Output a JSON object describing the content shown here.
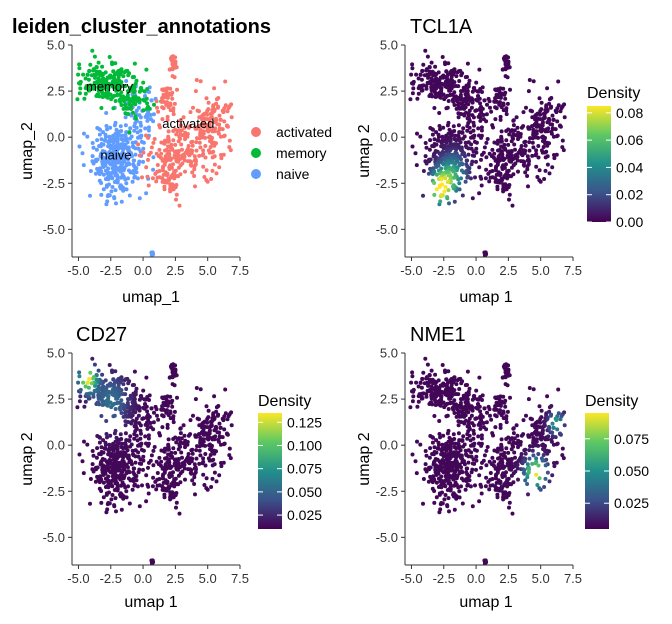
{
  "chart_data": [
    {
      "type": "scatter",
      "title": "leiden_cluster_annotations",
      "xlabel": "umap_1",
      "ylabel": "umap_2",
      "xlim": [
        -5.5,
        7.5
      ],
      "ylim": [
        -6.5,
        5.0
      ],
      "xticks": [
        "-5.0",
        "-2.5",
        "0.0",
        "2.5",
        "5.0",
        "7.5"
      ],
      "yticks": [
        "5.0",
        "2.5",
        "0.0",
        "-2.5",
        "-5.0"
      ],
      "color_mode": "categorical",
      "legend": {
        "placement": "right",
        "entries": [
          {
            "label": "activated",
            "color": "#F8766D"
          },
          {
            "label": "memory",
            "color": "#00BA38"
          },
          {
            "label": "naive",
            "color": "#619CFF"
          }
        ]
      },
      "cluster_labels": [
        {
          "text": "memory",
          "x": -2.6,
          "y": 2.5
        },
        {
          "text": "naive",
          "x": -2.1,
          "y": -1.2
        },
        {
          "text": "activated",
          "x": 3.5,
          "y": 0.5
        }
      ]
    },
    {
      "type": "scatter",
      "title": "TCL1A",
      "xlabel": "umap 1",
      "ylabel": "umap 2",
      "xlim": [
        -5.5,
        7.5
      ],
      "ylim": [
        -6.5,
        5.0
      ],
      "xticks": [
        "-5.0",
        "-2.5",
        "0.0",
        "2.5",
        "5.0",
        "7.5"
      ],
      "yticks": [
        "5.0",
        "2.5",
        "0.0",
        "-2.5",
        "-5.0"
      ],
      "color_mode": "density",
      "legend": {
        "placement": "right",
        "title": "Density",
        "range": [
          0,
          0.085
        ],
        "ticks": [
          "0.08",
          "0.06",
          "0.04",
          "0.02",
          "0.00"
        ],
        "tick_values": [
          0.08,
          0.06,
          0.04,
          0.02,
          0.0
        ]
      },
      "hotspots": [
        {
          "x": -2.8,
          "y": -2.8,
          "s": 0.9,
          "w": 1.0
        },
        {
          "x": -1.8,
          "y": -2.0,
          "s": 1.1,
          "w": 0.55
        }
      ]
    },
    {
      "type": "scatter",
      "title": "CD27",
      "xlabel": "umap 1",
      "ylabel": "umap 2",
      "xlim": [
        -5.5,
        7.5
      ],
      "ylim": [
        -6.5,
        5.0
      ],
      "xticks": [
        "-5.0",
        "-2.5",
        "0.0",
        "2.5",
        "5.0",
        "7.5"
      ],
      "yticks": [
        "5.0",
        "2.5",
        "0.0",
        "-2.5",
        "-5.0"
      ],
      "color_mode": "density",
      "legend": {
        "placement": "right",
        "title": "Density",
        "range": [
          0.01,
          0.135
        ],
        "ticks": [
          "0.125",
          "0.100",
          "0.075",
          "0.050",
          "0.025"
        ],
        "tick_values": [
          0.125,
          0.1,
          0.075,
          0.05,
          0.025
        ]
      },
      "hotspots": [
        {
          "x": -4.3,
          "y": 3.6,
          "s": 0.7,
          "w": 1.0
        },
        {
          "x": -2.5,
          "y": 2.4,
          "s": 1.4,
          "w": 0.35
        }
      ]
    },
    {
      "type": "scatter",
      "title": "NME1",
      "xlabel": "umap 1",
      "ylabel": "umap 2",
      "xlim": [
        -5.5,
        7.5
      ],
      "ylim": [
        -6.5,
        5.0
      ],
      "xticks": [
        "-5.0",
        "-2.5",
        "0.0",
        "2.5",
        "5.0",
        "7.5"
      ],
      "yticks": [
        "5.0",
        "2.5",
        "0.0",
        "-2.5",
        "-5.0"
      ],
      "color_mode": "density",
      "legend": {
        "placement": "right",
        "title": "Density",
        "range": [
          0.005,
          0.095
        ],
        "ticks": [
          "0.075",
          "0.050",
          "0.025"
        ],
        "tick_values": [
          0.075,
          0.05,
          0.025
        ]
      },
      "hotspots": [
        {
          "x": 4.6,
          "y": -1.5,
          "s": 0.8,
          "w": 1.0
        },
        {
          "x": 6.2,
          "y": 1.2,
          "s": 0.6,
          "w": 0.55
        }
      ]
    }
  ],
  "colors": {
    "viridis": [
      "#440154",
      "#3b528b",
      "#21908c",
      "#5dc863",
      "#fde725"
    ]
  }
}
